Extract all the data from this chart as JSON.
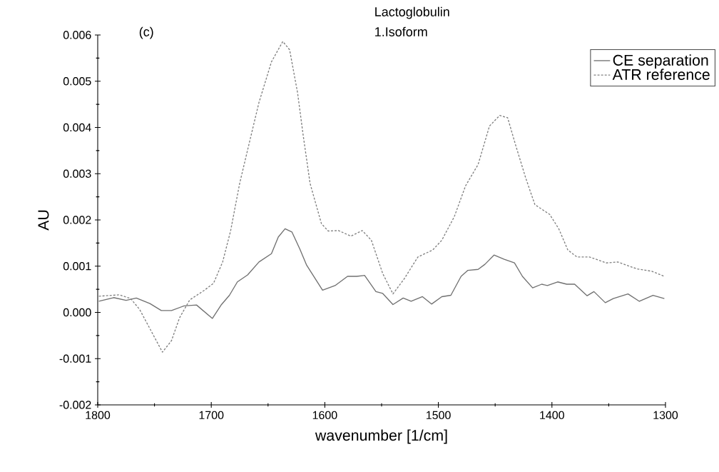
{
  "chart_data": {
    "type": "line",
    "title": "Lactoglobulin",
    "subtitle": "1.Isoform",
    "xlabel": "wavenumber [1/cm]",
    "ylabel": "AU",
    "annotations": [
      "(c)"
    ],
    "xlim": [
      1800,
      1300
    ],
    "xticks": [
      1800,
      1700,
      1600,
      1500,
      1400,
      1300
    ],
    "ylim": [
      -0.002,
      0.006
    ],
    "yticks": [
      -0.002,
      -0.001,
      {
        "value": 0,
        "label": "0.000"
      },
      0.001,
      0.002,
      0.003,
      0.004,
      0.005,
      0.006
    ],
    "legend": "top right",
    "grid": false,
    "marker": "none",
    "series": [
      {
        "name": "CE separation",
        "color": "#707070",
        "line_style": "solid",
        "x": [
          1799,
          1786,
          1775,
          1766,
          1754,
          1744,
          1735,
          1724,
          1713,
          1699,
          1691,
          1684,
          1677,
          1668,
          1658,
          1647,
          1641,
          1635,
          1629,
          1622,
          1616,
          1602,
          1591,
          1580,
          1572,
          1565,
          1555,
          1549,
          1540,
          1531,
          1524,
          1514,
          1506,
          1497,
          1489,
          1480,
          1474,
          1465,
          1459,
          1451,
          1442,
          1433,
          1426,
          1417,
          1409,
          1404,
          1395,
          1387,
          1380,
          1369,
          1363,
          1353,
          1346,
          1333,
          1323,
          1311,
          1301
        ],
        "values": [
          0.00024,
          0.00032,
          0.00026,
          0.00031,
          0.00019,
          4e-05,
          4e-05,
          0.00014,
          0.00016,
          -0.00013,
          0.00017,
          0.00037,
          0.00066,
          0.00081,
          0.00109,
          0.00127,
          0.00163,
          0.00181,
          0.00174,
          0.00137,
          0.00102,
          0.00048,
          0.00058,
          0.00078,
          0.00078,
          0.0008,
          0.00045,
          0.00041,
          0.00017,
          0.00031,
          0.00024,
          0.00034,
          0.00018,
          0.00034,
          0.00037,
          0.00078,
          0.00091,
          0.00093,
          0.00104,
          0.00124,
          0.00115,
          0.00107,
          0.00078,
          0.00053,
          0.00061,
          0.00058,
          0.00066,
          0.00061,
          0.00061,
          0.00036,
          0.00045,
          0.00021,
          0.0003,
          0.0004,
          0.00024,
          0.00037,
          0.0003
        ]
      },
      {
        "name": "ATR reference",
        "color": "#808080",
        "line_style": "dashed",
        "x": [
          1799,
          1781,
          1771,
          1763,
          1753,
          1743,
          1735,
          1728,
          1719,
          1706,
          1698,
          1690,
          1683,
          1675,
          1666,
          1658,
          1647,
          1637,
          1631,
          1624,
          1619,
          1613,
          1603,
          1597,
          1588,
          1577,
          1567,
          1559,
          1549,
          1540,
          1530,
          1518,
          1505,
          1497,
          1486,
          1476,
          1465,
          1455,
          1446,
          1439,
          1432,
          1423,
          1415,
          1402,
          1394,
          1386,
          1378,
          1367,
          1352,
          1342,
          1325,
          1312,
          1301
        ],
        "values": [
          0.00035,
          0.00038,
          0.0003,
          6e-05,
          -0.0004,
          -0.00086,
          -0.00061,
          -0.00012,
          0.00027,
          0.00048,
          0.00063,
          0.00109,
          0.00176,
          0.00279,
          0.00372,
          0.00454,
          0.00542,
          0.00586,
          0.00568,
          0.00475,
          0.00382,
          0.00279,
          0.00192,
          0.00176,
          0.00177,
          0.00165,
          0.00177,
          0.00156,
          0.00084,
          0.0004,
          0.00073,
          0.0012,
          0.00135,
          0.00156,
          0.00207,
          0.00274,
          0.0032,
          0.00403,
          0.00426,
          0.00421,
          0.00362,
          0.0029,
          0.00233,
          0.00212,
          0.00181,
          0.00135,
          0.0012,
          0.0012,
          0.00107,
          0.00109,
          0.00094,
          0.00089,
          0.00078
        ]
      }
    ]
  }
}
